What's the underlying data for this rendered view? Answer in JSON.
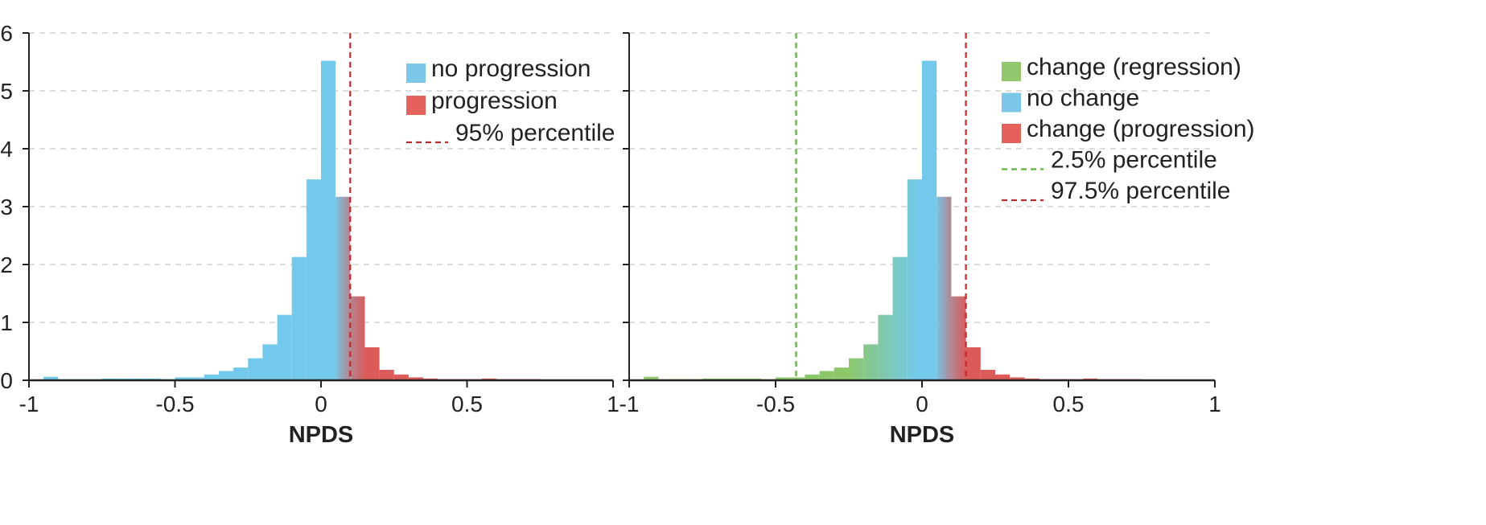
{
  "chart_data": [
    {
      "type": "bar",
      "xlabel": "NPDS",
      "ylabel": "",
      "xlim": [
        -1,
        1
      ],
      "ylim": [
        0,
        6
      ],
      "xticks": [
        "-1",
        "-0.5",
        "0",
        "0.5",
        "1"
      ],
      "yticks": [
        "0",
        "1",
        "2",
        "3",
        "4",
        "5",
        "6"
      ],
      "grid": "horizontal dashed",
      "bin_width": 0.05,
      "bin_starts": [
        -0.95,
        -0.9,
        -0.85,
        -0.8,
        -0.75,
        -0.7,
        -0.65,
        -0.6,
        -0.55,
        -0.5,
        -0.45,
        -0.4,
        -0.35,
        -0.3,
        -0.25,
        -0.2,
        -0.15,
        -0.1,
        -0.05,
        0.0,
        0.05,
        0.1,
        0.15,
        0.2,
        0.25,
        0.3,
        0.35,
        0.4,
        0.45,
        0.5,
        0.55,
        0.6,
        0.65,
        0.7,
        0.75,
        0.8,
        0.85,
        0.9,
        0.95
      ],
      "values": [
        0.06,
        0.02,
        0.02,
        0.02,
        0.03,
        0.03,
        0.03,
        0.03,
        0.02,
        0.05,
        0.05,
        0.1,
        0.16,
        0.22,
        0.38,
        0.62,
        1.13,
        2.13,
        3.47,
        5.52,
        3.17,
        1.45,
        0.57,
        0.18,
        0.1,
        0.05,
        0.03,
        0.02,
        0.02,
        0.02,
        0.03,
        0.02,
        0.02,
        0.02,
        0.01,
        0.01,
        0.01,
        0.01,
        0.01
      ],
      "lines": [
        {
          "name": "95% percentile",
          "x": 0.1,
          "color": "#c0282e"
        }
      ],
      "legend": {
        "position": "top-right",
        "entries": [
          {
            "label": "no progression",
            "kind": "patch",
            "color": "#7cc6e8"
          },
          {
            "label": "progression",
            "kind": "patch",
            "color": "#e5625c"
          },
          {
            "label": "95% percentile",
            "kind": "dash",
            "color": "#c0282e"
          }
        ]
      },
      "colors": {
        "no_progression": "#73c9eb",
        "progression": "#dc5a58"
      }
    },
    {
      "type": "bar",
      "xlabel": "NPDS",
      "ylabel": "",
      "xlim": [
        -1,
        1
      ],
      "ylim": [
        0,
        6
      ],
      "xticks": [
        "-1",
        "-0.5",
        "0",
        "0.5",
        "1"
      ],
      "grid": "horizontal dashed",
      "bin_width": 0.05,
      "bin_starts": [
        -0.95,
        -0.9,
        -0.85,
        -0.8,
        -0.75,
        -0.7,
        -0.65,
        -0.6,
        -0.55,
        -0.5,
        -0.45,
        -0.4,
        -0.35,
        -0.3,
        -0.25,
        -0.2,
        -0.15,
        -0.1,
        -0.05,
        0.0,
        0.05,
        0.1,
        0.15,
        0.2,
        0.25,
        0.3,
        0.35,
        0.4,
        0.45,
        0.5,
        0.55,
        0.6,
        0.65,
        0.7,
        0.75,
        0.8,
        0.85,
        0.9,
        0.95
      ],
      "values": [
        0.06,
        0.02,
        0.02,
        0.02,
        0.03,
        0.03,
        0.03,
        0.03,
        0.02,
        0.05,
        0.05,
        0.1,
        0.16,
        0.22,
        0.38,
        0.62,
        1.13,
        2.13,
        3.47,
        5.52,
        3.17,
        1.45,
        0.57,
        0.18,
        0.1,
        0.05,
        0.03,
        0.02,
        0.02,
        0.02,
        0.03,
        0.02,
        0.02,
        0.02,
        0.01,
        0.01,
        0.01,
        0.01,
        0.01
      ],
      "lines": [
        {
          "name": "2.5% percentile",
          "x": -0.43,
          "color": "#5db336"
        },
        {
          "name": "97.5% percentile",
          "x": 0.15,
          "color": "#c0282e"
        }
      ],
      "legend": {
        "position": "top-right",
        "entries": [
          {
            "label": "change (regression)",
            "kind": "patch",
            "color": "#93c96e"
          },
          {
            "label": "no change",
            "kind": "patch",
            "color": "#7cc6e8"
          },
          {
            "label": "change (progression)",
            "kind": "patch",
            "color": "#e5625c"
          },
          {
            "label": "2.5% percentile",
            "kind": "dash",
            "color": "#5db336"
          },
          {
            "label": "97.5% percentile",
            "kind": "dash",
            "color": "#c0282e"
          }
        ]
      },
      "colors": {
        "regression": "#8cc86a",
        "no_change": "#73c9eb",
        "progression": "#dc5a58"
      }
    }
  ]
}
